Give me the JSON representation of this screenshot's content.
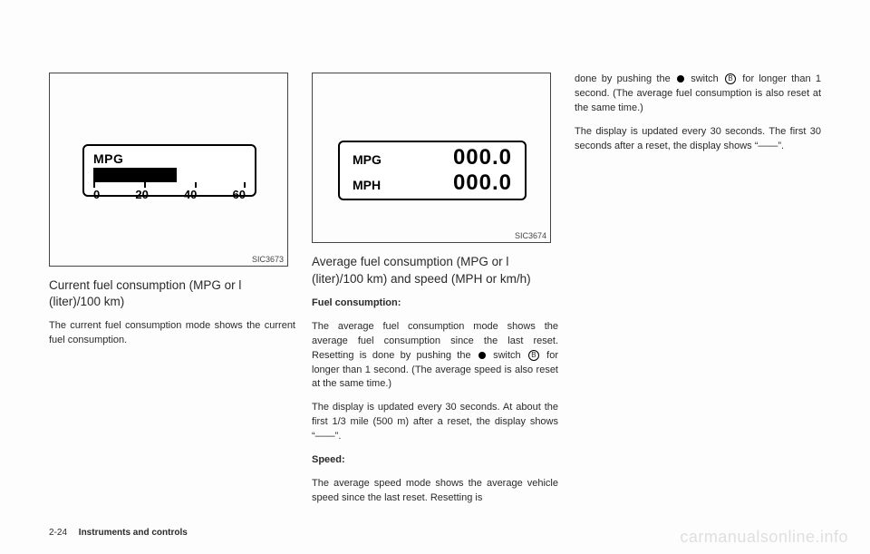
{
  "col1": {
    "figure": {
      "code": "SIC3673",
      "gauge_label": "MPG",
      "bar_fill_pct": 55,
      "scale": [
        "0",
        "20",
        "40",
        "60"
      ],
      "bg": "#ffffff",
      "border": "#000000"
    },
    "heading": "Current fuel consumption (MPG or l (liter)/100 km)",
    "text": "The current fuel consumption mode shows the current fuel consumption."
  },
  "col2": {
    "figure": {
      "code": "SIC3674",
      "rows": [
        {
          "label": "MPG",
          "value": "000.0"
        },
        {
          "label": "MPH",
          "value": "000.0"
        }
      ],
      "bg": "#ffffff",
      "border": "#000000"
    },
    "heading": "Average fuel consumption (MPG or l (liter)/100 km) and speed (MPH or km/h)",
    "sub1_title": "Fuel consumption:",
    "sub1_p1a": "The average fuel consumption mode shows the average fuel consumption since the last reset. Resetting is done by pushing the ",
    "sub1_p1b": " switch ",
    "circ1": "B",
    "sub1_p1c": " for longer than 1 second. (The average speed is also reset at the same time.)",
    "sub1_p2": "The display is updated every 30 seconds. At about the first 1/3 mile (500 m) after a reset, the display shows “——”.",
    "sub2_title": "Speed:",
    "sub2_p1": "The average speed mode shows the average vehicle speed since the last reset. Resetting is"
  },
  "col3": {
    "p1a": "done by pushing the ",
    "p1b": " switch ",
    "circ": "B",
    "p1c": " for longer than 1 second. (The average fuel consumption is also reset at the same time.)",
    "p2": "The display is updated every 30 seconds. The first 30 seconds after a reset, the display shows “——”."
  },
  "footer": {
    "page": "2-24",
    "section": "Instruments and controls"
  },
  "watermark": "carmanualsonline.info"
}
